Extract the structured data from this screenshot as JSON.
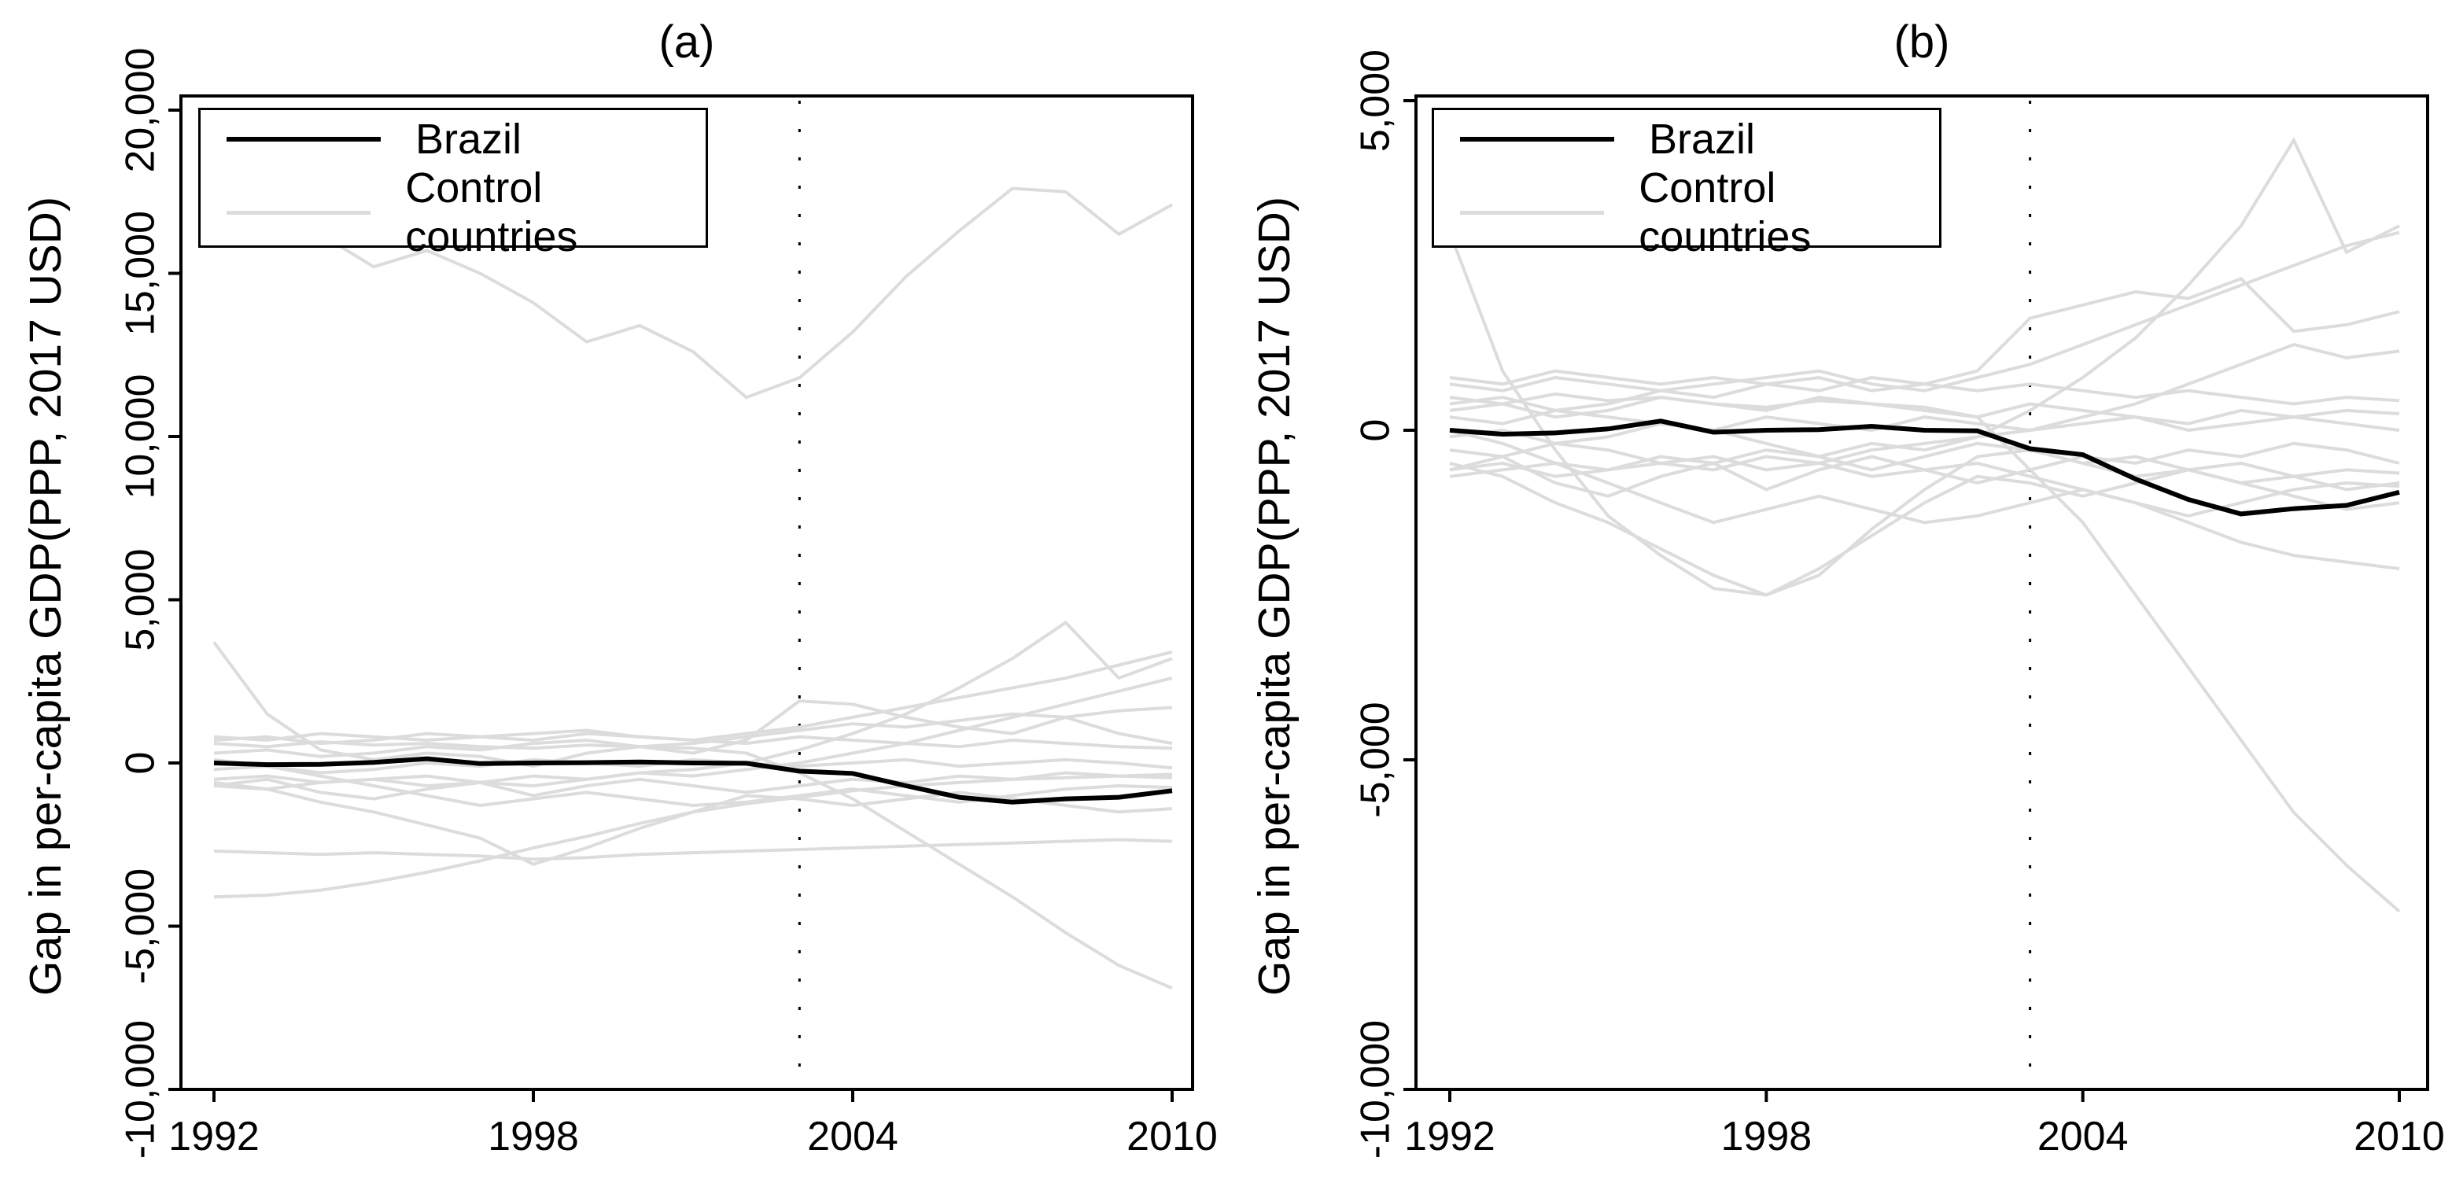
{
  "figure": {
    "background": "#ffffff",
    "colors": {
      "treated": "#000000",
      "control": "#dcdcdc",
      "axis": "#000000"
    }
  },
  "chart_data": [
    {
      "type": "line",
      "title": "(a)",
      "xlabel": "",
      "ylabel": "Gap in per-capita GDP(PPP, 2017 USD)",
      "legend": [
        "Brazil",
        "Control countries"
      ],
      "legend_position": "top-left",
      "grid": false,
      "ylim": [
        -10000,
        20000
      ],
      "xlim": [
        1992,
        2010
      ],
      "treatment_line_x": 2003,
      "x_tick_values": [
        1992,
        1998,
        2004,
        2010
      ],
      "x_tick_labels": [
        "1992",
        "1998",
        "2004",
        "2010"
      ],
      "y_ticks": [
        {
          "value": 20000,
          "label": "20,000"
        },
        {
          "value": 15000,
          "label": "15,000"
        },
        {
          "value": 10000,
          "label": "10,000"
        },
        {
          "value": 5000,
          "label": "5,000"
        },
        {
          "value": 0,
          "label": "0"
        },
        {
          "value": -5000,
          "label": "-5,000"
        },
        {
          "value": -10000,
          "label": "-10,000"
        }
      ],
      "x": [
        1992,
        1993,
        1994,
        1995,
        1996,
        1997,
        1998,
        1999,
        2000,
        2001,
        2002,
        2003,
        2004,
        2005,
        2006,
        2007,
        2008,
        2009,
        2010
      ],
      "series": [
        {
          "name": "Brazil",
          "role": "treated",
          "values": [
            0,
            -50,
            -40,
            20,
            130,
            -20,
            0,
            10,
            30,
            0,
            -10,
            -250,
            -320,
            -700,
            -1050,
            -1200,
            -1100,
            -1050,
            -850
          ]
        },
        {
          "name": "Control 1",
          "role": "control",
          "values": [
            18000,
            17000,
            16200,
            15200,
            15700,
            15000,
            14100,
            12900,
            13400,
            12600,
            11200,
            11800,
            13200,
            14900,
            16300,
            17600,
            17500,
            16200,
            17100
          ]
        },
        {
          "name": "Control 2",
          "role": "control",
          "values": [
            3700,
            1500,
            400,
            100,
            300,
            200,
            -100,
            300,
            500,
            300,
            700,
            1900,
            1800,
            1400,
            1100,
            900,
            1400,
            900,
            600
          ]
        },
        {
          "name": "Control 3",
          "role": "control",
          "values": [
            -2700,
            -2750,
            -2800,
            -2750,
            -2800,
            -2850,
            -2950,
            -2900,
            -2800,
            -2750,
            -2700,
            -2650,
            -2600,
            -2550,
            -2500,
            -2450,
            -2400,
            -2350,
            -2400
          ]
        },
        {
          "name": "Control 4",
          "role": "control",
          "values": [
            -4100,
            -4050,
            -3900,
            -3650,
            -3350,
            -3000,
            -2600,
            -2250,
            -1850,
            -1500,
            -1250,
            -1050,
            -850,
            -700,
            -600,
            -500,
            -450,
            -400,
            -350
          ]
        },
        {
          "name": "Control 5",
          "role": "control",
          "values": [
            600,
            500,
            650,
            550,
            600,
            500,
            450,
            550,
            500,
            450,
            300,
            -300,
            -1100,
            -2100,
            -3100,
            -4100,
            -5200,
            -6200,
            -6900
          ]
        },
        {
          "name": "Control 6",
          "role": "control",
          "values": [
            -700,
            -800,
            -600,
            -500,
            -400,
            -600,
            -700,
            -500,
            -300,
            -200,
            0,
            400,
            900,
            1500,
            2300,
            3200,
            4300,
            2600,
            3200
          ]
        },
        {
          "name": "Control 7",
          "role": "control",
          "values": [
            800,
            700,
            900,
            800,
            700,
            800,
            900,
            1000,
            800,
            700,
            900,
            1100,
            1400,
            1700,
            2000,
            2300,
            2600,
            3000,
            3400
          ]
        },
        {
          "name": "Control 8",
          "role": "control",
          "values": [
            -500,
            -400,
            -600,
            -500,
            -700,
            -600,
            -400,
            -500,
            -300,
            -400,
            -200,
            0,
            300,
            600,
            1000,
            1400,
            1800,
            2200,
            2600
          ]
        },
        {
          "name": "Control 9",
          "role": "control",
          "values": [
            300,
            400,
            200,
            300,
            500,
            400,
            600,
            700,
            500,
            600,
            800,
            1000,
            1200,
            1100,
            1300,
            1500,
            1400,
            1600,
            1700
          ]
        },
        {
          "name": "Control 10",
          "role": "control",
          "values": [
            700,
            800,
            600,
            700,
            900,
            800,
            700,
            900,
            800,
            700,
            600,
            800,
            700,
            600,
            500,
            700,
            600,
            500,
            450
          ]
        },
        {
          "name": "Control 11",
          "role": "control",
          "values": [
            -200,
            -100,
            -300,
            -200,
            0,
            -100,
            100,
            0,
            -100,
            100,
            0,
            -100,
            0,
            100,
            -100,
            0,
            100,
            0,
            -150
          ]
        },
        {
          "name": "Control 12",
          "role": "control",
          "values": [
            -700,
            -500,
            -900,
            -1100,
            -800,
            -600,
            -1000,
            -700,
            -500,
            -700,
            -900,
            -700,
            -500,
            -600,
            -400,
            -500,
            -300,
            -400,
            -450
          ]
        },
        {
          "name": "Control 13",
          "role": "control",
          "values": [
            -600,
            -800,
            -1200,
            -1500,
            -1900,
            -2300,
            -3100,
            -2600,
            -2000,
            -1500,
            -1000,
            -1100,
            -1300,
            -1100,
            -900,
            -1100,
            -1300,
            -1500,
            -1400
          ]
        },
        {
          "name": "Control 14",
          "role": "control",
          "values": [
            100,
            -100,
            -400,
            -700,
            -1000,
            -1300,
            -1100,
            -900,
            -1100,
            -1300,
            -1200,
            -1000,
            -800,
            -1000,
            -1200,
            -1000,
            -800,
            -700,
            -750
          ]
        }
      ]
    },
    {
      "type": "line",
      "title": "(b)",
      "xlabel": "",
      "ylabel": "Gap in per-capita GDP(PPP, 2017 USD)",
      "legend": [
        "Brazil",
        "Control countries"
      ],
      "legend_position": "top-left",
      "grid": false,
      "ylim": [
        -10000,
        5000
      ],
      "xlim": [
        1992,
        2010
      ],
      "treatment_line_x": 2003,
      "x_tick_values": [
        1992,
        1998,
        2004,
        2010
      ],
      "x_tick_labels": [
        "1992",
        "1998",
        "2004",
        "2010"
      ],
      "y_ticks": [
        {
          "value": 5000,
          "label": "5,000"
        },
        {
          "value": 0,
          "label": "0"
        },
        {
          "value": -5000,
          "label": "-5,000"
        },
        {
          "value": -10000,
          "label": "-10,000"
        }
      ],
      "x": [
        1992,
        1993,
        1994,
        1995,
        1996,
        1997,
        1998,
        1999,
        2000,
        2001,
        2002,
        2003,
        2004,
        2005,
        2006,
        2007,
        2008,
        2009,
        2010
      ],
      "series": [
        {
          "name": "Brazil",
          "role": "treated",
          "values": [
            0,
            -60,
            -40,
            20,
            140,
            -30,
            0,
            10,
            60,
            0,
            -10,
            -280,
            -370,
            -740,
            -1050,
            -1270,
            -1190,
            -1140,
            -940
          ]
        },
        {
          "name": "Control 1",
          "role": "control",
          "values": [
            3000,
            900,
            -300,
            -1300,
            -1900,
            -2400,
            -2500,
            -2200,
            -1500,
            -900,
            -400,
            -300,
            -500,
            -700,
            -600,
            -800,
            -700,
            -900,
            -800
          ]
        },
        {
          "name": "Control 2",
          "role": "control",
          "values": [
            -600,
            -500,
            -700,
            -600,
            -500,
            -600,
            -400,
            -500,
            -300,
            -200,
            -100,
            300,
            800,
            1400,
            2200,
            3100,
            4400,
            2700,
            3100
          ]
        },
        {
          "name": "Control 3",
          "role": "control",
          "values": [
            700,
            600,
            800,
            700,
            600,
            700,
            800,
            900,
            700,
            600,
            800,
            1000,
            1300,
            1600,
            1900,
            2200,
            2500,
            2800,
            3000
          ]
        },
        {
          "name": "Control 4",
          "role": "control",
          "values": [
            400,
            500,
            300,
            400,
            600,
            500,
            700,
            800,
            600,
            700,
            900,
            1700,
            1900,
            2100,
            2000,
            2300,
            1500,
            1600,
            1800
          ]
        },
        {
          "name": "Control 5",
          "role": "control",
          "values": [
            500,
            400,
            550,
            450,
            500,
            400,
            350,
            450,
            400,
            350,
            200,
            -600,
            -1400,
            -2500,
            -3600,
            -4700,
            -5800,
            -6600,
            -7300
          ]
        },
        {
          "name": "Control 6",
          "role": "control",
          "values": [
            -300,
            -400,
            -200,
            -300,
            -500,
            -400,
            -600,
            -500,
            -700,
            -600,
            -500,
            -700,
            -900,
            -1100,
            -1400,
            -1700,
            -1900,
            -2000,
            -2100
          ]
        },
        {
          "name": "Control 7",
          "role": "control",
          "values": [
            300,
            400,
            200,
            300,
            500,
            400,
            300,
            500,
            400,
            300,
            200,
            400,
            300,
            200,
            100,
            300,
            200,
            300,
            250
          ]
        },
        {
          "name": "Control 8",
          "role": "control",
          "values": [
            -100,
            0,
            -200,
            -100,
            100,
            0,
            200,
            100,
            0,
            200,
            100,
            0,
            100,
            200,
            0,
            100,
            200,
            100,
            0
          ]
        },
        {
          "name": "Control 9",
          "role": "control",
          "values": [
            -600,
            -400,
            -800,
            -1000,
            -700,
            -500,
            -900,
            -600,
            -400,
            -600,
            -800,
            -600,
            -400,
            -500,
            -300,
            -400,
            -200,
            -300,
            -500
          ]
        },
        {
          "name": "Control 10",
          "role": "control",
          "values": [
            -500,
            -700,
            -1100,
            -1400,
            -1800,
            -2200,
            -2500,
            -2100,
            -1600,
            -1100,
            -700,
            -800,
            -1000,
            -800,
            -600,
            -800,
            -1000,
            -1200,
            -1100
          ]
        },
        {
          "name": "Control 11",
          "role": "control",
          "values": [
            0,
            -200,
            -500,
            -800,
            -1100,
            -1400,
            -1200,
            -1000,
            -1200,
            -1400,
            -1300,
            -1100,
            -900,
            -1100,
            -1300,
            -1100,
            -900,
            -800,
            -850
          ]
        },
        {
          "name": "Control 12",
          "role": "control",
          "values": [
            800,
            700,
            900,
            800,
            700,
            800,
            700,
            600,
            800,
            700,
            600,
            700,
            600,
            500,
            600,
            500,
            400,
            500,
            450
          ]
        },
        {
          "name": "Control 13",
          "role": "control",
          "values": [
            -700,
            -600,
            -500,
            -600,
            -400,
            -500,
            -300,
            -400,
            -200,
            -300,
            -100,
            0,
            200,
            400,
            700,
            1000,
            1300,
            1100,
            1200
          ]
        },
        {
          "name": "Control 14",
          "role": "control",
          "values": [
            200,
            100,
            300,
            200,
            100,
            0,
            -200,
            -400,
            -600,
            -400,
            -200,
            -300,
            -500,
            -400,
            -600,
            -500,
            -700,
            -600,
            -650
          ]
        }
      ]
    }
  ]
}
